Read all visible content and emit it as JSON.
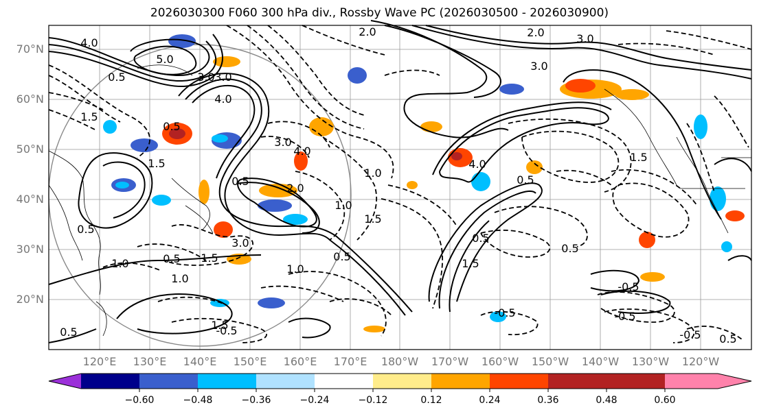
{
  "title": "2026030300 F060 300 hPa div., Rossby Wave PC (2026030500 - 2026030900)",
  "lat_labels": [
    "70°N",
    "60°N",
    "50°N",
    "40°N",
    "30°N",
    "20°N"
  ],
  "lon_labels": [
    "120°E",
    "130°E",
    "140°E",
    "150°E",
    "160°E",
    "170°E",
    "180°W",
    "170°W",
    "160°W",
    "150°W",
    "140°W",
    "130°W",
    "120°W"
  ],
  "contour_labels": [
    "4.0",
    "5.0",
    "3.0",
    "2.0",
    "2.0",
    "3.0",
    "3.0",
    "1.5",
    "0.5",
    "3.0",
    "4.0",
    "1.5",
    "0.5",
    "3.0",
    "4.0",
    "1.0",
    "2.0",
    "3.0",
    "1.0",
    "1.5",
    "0.5",
    "0.5",
    "1.5",
    "1.5",
    "0.5",
    "1.0",
    "0.5",
    "1.0",
    "0.5",
    "0.5",
    "-0.5",
    "-0.5",
    "-0.5",
    "-0.5",
    "-0.5",
    "0.5",
    "0.5",
    "0.5",
    "1.0",
    "4.0",
    "1.5",
    "1.5"
  ],
  "colorbar": {
    "ticks": [
      "−0.60",
      "−0.48",
      "−0.36",
      "−0.24",
      "−0.12",
      "0.12",
      "0.24",
      "0.36",
      "0.48",
      "0.60"
    ],
    "colors": [
      "#9b30d9",
      "#00008b",
      "#3a5fcd",
      "#00bfff",
      "#b0e2ff",
      "#ffffff",
      "#ffec8b",
      "#ffa500",
      "#ff4500",
      "#b22222",
      "#ff82ab"
    ]
  }
}
